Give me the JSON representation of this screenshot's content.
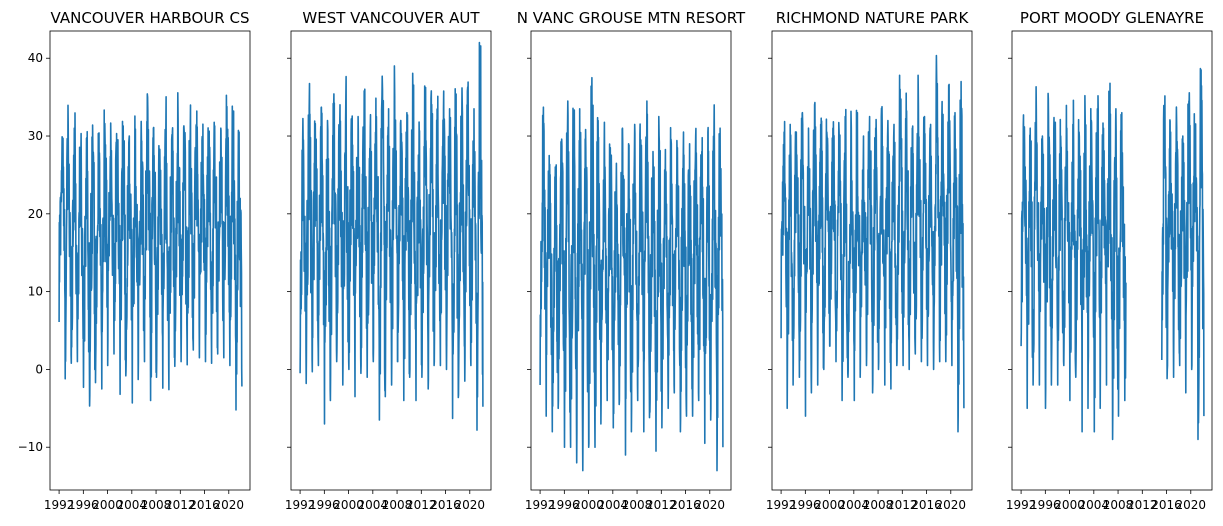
{
  "chart_data": [
    {
      "type": "line",
      "title": "VANCOUVER HARBOUR CS",
      "xlabel": "",
      "ylabel": "",
      "xlim": [
        1990.5,
        2023.5
      ],
      "ylim": [
        -15.5,
        43.5
      ],
      "x_ticks": [
        1992,
        1996,
        2000,
        2004,
        2008,
        2012,
        2016,
        2020
      ],
      "x_tick_labels": [
        "1992",
        "1996",
        "2000",
        "2004",
        "2008",
        "2012",
        "2016",
        "2020"
      ],
      "y_ticks": [
        -10,
        0,
        10,
        20,
        30,
        40
      ],
      "y_tick_labels": [
        "−10",
        "0",
        "10",
        "20",
        "30",
        "40"
      ],
      "y_tick_labels_visible": true,
      "series_color": "#1f77b4",
      "series": [
        {
          "x_start": 1992,
          "x_end": 2022.2,
          "cycle_years": 1,
          "summer_peaks": [
            29.9,
            31.4,
            31.0,
            28.2,
            29.7,
            31.4,
            27.5,
            31.6,
            29.3,
            28.9,
            31.3,
            30.0,
            30.9,
            28.7,
            35.0,
            31.1,
            28.3,
            31.5,
            30.2,
            32.0,
            30.5,
            31.0,
            31.5,
            28.9,
            30.2,
            31.3,
            31.0,
            33.8,
            32.0,
            30.5
          ],
          "winter_lows": [
            6.1,
            -1.2,
            0.8,
            1.0,
            -2.3,
            -4.7,
            1.2,
            -2.5,
            3.8,
            2.0,
            -3.2,
            1.5,
            -4.3,
            1.0,
            1.0,
            -4.0,
            1.2,
            -2.4,
            -2.6,
            2.0,
            1.0,
            0.6,
            2.5,
            1.5,
            1.0,
            0.8,
            2.0,
            1.5,
            0.5,
            -5.2
          ],
          "gaps": []
        }
      ]
    },
    {
      "type": "line",
      "title": "WEST VANCOUVER AUT",
      "xlabel": "",
      "ylabel": "",
      "xlim": [
        1990.5,
        2023.5
      ],
      "ylim": [
        -15.5,
        43.5
      ],
      "x_ticks": [
        1992,
        1996,
        2000,
        2004,
        2008,
        2012,
        2016,
        2020
      ],
      "x_tick_labels": [
        "1992",
        "1996",
        "2000",
        "2004",
        "2008",
        "2012",
        "2016",
        "2020"
      ],
      "y_ticks": [
        -10,
        0,
        10,
        20,
        30,
        40
      ],
      "y_tick_labels": [
        "−10",
        "0",
        "10",
        "20",
        "30",
        "40"
      ],
      "y_tick_labels_visible": false,
      "series_color": "#1f77b4",
      "series": [
        {
          "x_start": 1992,
          "x_end": 2022.2,
          "cycle_years": 1,
          "summer_peaks": [
            29.5,
            33.5,
            31.6,
            33.7,
            32.0,
            33.2,
            31.0,
            34.2,
            31.5,
            32.5,
            35.8,
            31.0,
            32.5,
            36.0,
            33.5,
            35.0,
            32.0,
            33.0,
            34.5,
            31.8,
            33.5,
            35.8,
            33.0,
            33.5,
            33.5,
            34.0,
            32.5,
            35.0,
            33.5,
            40.6
          ],
          "winter_lows": [
            -0.5,
            -1.8,
            -0.3,
            0.5,
            -7.0,
            -0.5,
            1.0,
            -2.0,
            0.0,
            -3.5,
            0.5,
            -1.0,
            1.0,
            -6.5,
            0.5,
            -2.0,
            1.0,
            -4.0,
            0.0,
            -4.0,
            0.5,
            -2.5,
            1.0,
            0.5,
            0.0,
            -6.3,
            0.0,
            -1.5,
            0.5,
            -7.8
          ],
          "gaps": []
        }
      ]
    },
    {
      "type": "line",
      "title": "N VANC GROUSE MTN RESORT",
      "xlabel": "",
      "ylabel": "",
      "xlim": [
        1990.5,
        2023.5
      ],
      "ylim": [
        -15.5,
        43.5
      ],
      "x_ticks": [
        1992,
        1996,
        2000,
        2004,
        2008,
        2012,
        2016,
        2020
      ],
      "x_tick_labels": [
        "1992",
        "1996",
        "2000",
        "2004",
        "2008",
        "2012",
        "2016",
        "2020"
      ],
      "y_ticks": [
        -10,
        0,
        10,
        20,
        30,
        40
      ],
      "y_tick_labels": [
        "−10",
        "0",
        "10",
        "20",
        "30",
        "40"
      ],
      "y_tick_labels_visible": false,
      "series_color": "#1f77b4",
      "series": [
        {
          "x_start": 1992,
          "x_end": 2022.2,
          "cycle_years": 1,
          "summer_peaks": [
            30.0,
            27.5,
            26.0,
            29.0,
            30.5,
            32.0,
            33.5,
            28.5,
            37.5,
            32.0,
            28.5,
            28.5,
            26.5,
            31.0,
            29.0,
            31.5,
            29.5,
            34.5,
            28.0,
            30.0,
            25.0,
            29.0,
            28.5,
            30.5,
            29.0,
            30.0,
            28.0,
            30.5,
            30.5,
            31.0
          ],
          "winter_lows": [
            -2.0,
            -6.0,
            -8.0,
            -4.0,
            -10.0,
            -10.0,
            -12.0,
            -13.0,
            -9.5,
            -10.0,
            -4.0,
            -4.0,
            -7.5,
            -4.0,
            -11.0,
            -5.0,
            -4.0,
            -8.0,
            -5.5,
            -10.5,
            -4.0,
            -5.0,
            -3.0,
            -8.0,
            -6.0,
            -6.0,
            -4.0,
            -9.5,
            -5.0,
            -13.0
          ],
          "gaps": []
        }
      ]
    },
    {
      "type": "line",
      "title": "RICHMOND NATURE PARK",
      "xlabel": "",
      "ylabel": "",
      "xlim": [
        1990.5,
        2023.5
      ],
      "ylim": [
        -15.5,
        43.5
      ],
      "x_ticks": [
        1992,
        1996,
        2000,
        2004,
        2008,
        2012,
        2016,
        2020
      ],
      "x_tick_labels": [
        "1992",
        "1996",
        "2000",
        "2004",
        "2008",
        "2012",
        "2016",
        "2020"
      ],
      "y_ticks": [
        -10,
        0,
        10,
        20,
        30,
        40
      ],
      "y_tick_labels": [
        "−10",
        "0",
        "10",
        "20",
        "30",
        "40"
      ],
      "y_tick_labels_visible": false,
      "series_color": "#1f77b4",
      "series": [
        {
          "x_start": 1992,
          "x_end": 2022.2,
          "cycle_years": 1,
          "summer_peaks": [
            30.5,
            31.5,
            30.5,
            33.0,
            31.0,
            34.0,
            31.5,
            30.5,
            31.0,
            30.5,
            32.5,
            31.0,
            33.0,
            30.0,
            32.5,
            31.0,
            30.5,
            32.0,
            31.5,
            36.0,
            35.5,
            31.0,
            34.0,
            32.5,
            31.5,
            37.0,
            32.5,
            33.5,
            33.0,
            37.0
          ],
          "winter_lows": [
            4.0,
            -5.0,
            1.0,
            -1.0,
            -6.0,
            1.0,
            -2.0,
            0.0,
            3.0,
            1.0,
            -4.0,
            0.0,
            -4.0,
            1.0,
            0.5,
            -3.0,
            1.0,
            -2.0,
            -2.5,
            1.0,
            0.5,
            0.0,
            2.0,
            1.0,
            0.5,
            0.0,
            1.0,
            1.0,
            0.5,
            -8.0
          ],
          "gaps": []
        }
      ]
    },
    {
      "type": "line",
      "title": "PORT MOODY GLENAYRE",
      "xlabel": "",
      "ylabel": "",
      "xlim": [
        1990.5,
        2023.5
      ],
      "ylim": [
        -15.5,
        43.5
      ],
      "x_ticks": [
        1992,
        1996,
        2000,
        2004,
        2008,
        2012,
        2016,
        2020
      ],
      "x_tick_labels": [
        "1992",
        "1996",
        "2000",
        "2004",
        "2008",
        "2012",
        "2016",
        "2020"
      ],
      "y_ticks": [
        -10,
        0,
        10,
        20,
        30,
        40
      ],
      "y_tick_labels": [
        "−10",
        "0",
        "10",
        "20",
        "30",
        "40"
      ],
      "y_tick_labels_visible": false,
      "series_color": "#1f77b4",
      "series": [
        {
          "x_start": 1992,
          "x_end": 2022.2,
          "cycle_years": 1,
          "summer_peaks": [
            31.0,
            31.0,
            33.5,
            30.0,
            32.5,
            31.0,
            30.0,
            31.0,
            31.5,
            30.5,
            32.0,
            32.0,
            33.5,
            31.0,
            35.0,
            32.0,
            33.0,
            31.0,
            31.0,
            31.0,
            31.5,
            31.5,
            32.0,
            32.5,
            30.5,
            31.0,
            30.0,
            34.5,
            31.0,
            38.5
          ],
          "winter_lows": [
            3.0,
            -5.0,
            0.0,
            -2.0,
            -5.0,
            1.0,
            -2.0,
            0.5,
            -4.0,
            1.0,
            -8.0,
            0.5,
            -8.0,
            1.0,
            -2.0,
            -9.0,
            1.0,
            -4.0,
            0.0,
            0.0,
            0.0,
            -6.0,
            1.0,
            -3.0,
            0.5,
            -1.0,
            0.5,
            -3.0,
            0.5,
            -9.0
          ],
          "gaps": [
            [
              2009.3,
              2015.2
            ]
          ]
        }
      ]
    }
  ]
}
